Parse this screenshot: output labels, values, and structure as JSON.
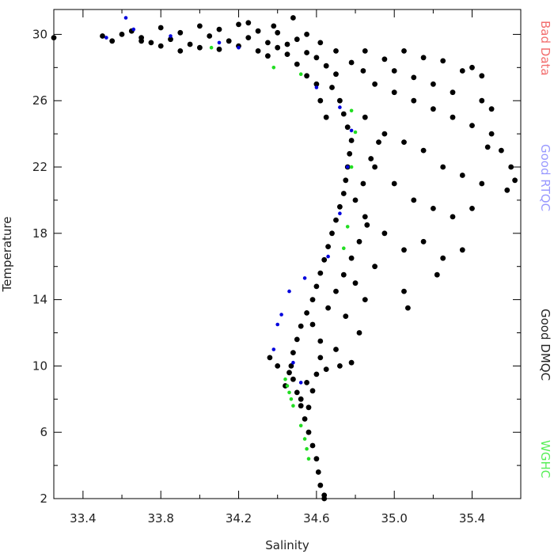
{
  "chart_data": {
    "type": "scatter",
    "xlabel": "Salinity",
    "ylabel": "Temperature",
    "xlim": [
      33.25,
      35.65
    ],
    "ylim": [
      2,
      31.5
    ],
    "x_ticks": [
      33.4,
      33.8,
      34.2,
      34.6,
      35.0,
      35.4
    ],
    "x_tick_labels": [
      "33.4",
      "33.8",
      "34.2",
      "34.6",
      "35.0",
      "35.4"
    ],
    "y_ticks": [
      2,
      6,
      10,
      14,
      18,
      22,
      26,
      30
    ],
    "y_tick_labels": [
      "2",
      "6",
      "10",
      "14",
      "18",
      "22",
      "26",
      "30"
    ],
    "grid": false,
    "legend_position": "right, vertical",
    "legend": [
      {
        "label": "Bad Data",
        "color": "#f26d6d"
      },
      {
        "label": "Good RTQC",
        "color": "#9999ff"
      },
      {
        "label": "Good DMQC",
        "color": "#222222"
      },
      {
        "label": "WGHC",
        "color": "#55ee55"
      }
    ],
    "series": [
      {
        "name": "Good DMQC",
        "color": "#000000",
        "points": [
          [
            33.25,
            29.8
          ],
          [
            33.5,
            29.9
          ],
          [
            33.55,
            29.6
          ],
          [
            33.6,
            30.0
          ],
          [
            33.65,
            30.2
          ],
          [
            33.7,
            29.8
          ],
          [
            33.75,
            29.5
          ],
          [
            33.8,
            30.4
          ],
          [
            33.85,
            29.7
          ],
          [
            33.9,
            30.1
          ],
          [
            33.95,
            29.4
          ],
          [
            34.0,
            30.5
          ],
          [
            34.05,
            29.9
          ],
          [
            34.1,
            30.3
          ],
          [
            34.15,
            29.6
          ],
          [
            34.2,
            30.6
          ],
          [
            34.25,
            29.8
          ],
          [
            34.3,
            30.2
          ],
          [
            34.35,
            29.5
          ],
          [
            34.4,
            30.1
          ],
          [
            34.45,
            29.4
          ],
          [
            34.5,
            29.7
          ],
          [
            34.55,
            28.9
          ],
          [
            34.6,
            28.6
          ],
          [
            34.65,
            28.1
          ],
          [
            34.7,
            27.6
          ],
          [
            34.68,
            26.8
          ],
          [
            34.72,
            26.0
          ],
          [
            34.74,
            25.2
          ],
          [
            34.76,
            24.4
          ],
          [
            34.78,
            23.6
          ],
          [
            34.77,
            22.8
          ],
          [
            34.76,
            22.0
          ],
          [
            34.75,
            21.2
          ],
          [
            34.74,
            20.4
          ],
          [
            34.72,
            19.6
          ],
          [
            34.7,
            18.8
          ],
          [
            34.68,
            18.0
          ],
          [
            34.66,
            17.2
          ],
          [
            34.64,
            16.4
          ],
          [
            34.62,
            15.6
          ],
          [
            34.6,
            14.8
          ],
          [
            34.58,
            14.0
          ],
          [
            34.55,
            13.2
          ],
          [
            34.52,
            12.4
          ],
          [
            34.5,
            11.6
          ],
          [
            34.48,
            10.8
          ],
          [
            34.47,
            10.0
          ],
          [
            34.48,
            9.2
          ],
          [
            34.5,
            8.4
          ],
          [
            34.52,
            7.6
          ],
          [
            34.54,
            6.8
          ],
          [
            34.56,
            6.0
          ],
          [
            34.58,
            5.2
          ],
          [
            34.6,
            4.4
          ],
          [
            34.61,
            3.6
          ],
          [
            34.62,
            2.8
          ],
          [
            34.64,
            2.2
          ],
          [
            34.64,
            2.0
          ],
          [
            34.85,
            29.0
          ],
          [
            34.95,
            28.5
          ],
          [
            35.05,
            29.0
          ],
          [
            35.15,
            28.6
          ],
          [
            35.25,
            28.4
          ],
          [
            35.35,
            27.8
          ],
          [
            35.4,
            28.0
          ],
          [
            35.45,
            27.5
          ],
          [
            34.9,
            27.0
          ],
          [
            35.0,
            26.5
          ],
          [
            35.1,
            26.0
          ],
          [
            35.2,
            25.5
          ],
          [
            35.3,
            25.0
          ],
          [
            35.4,
            24.5
          ],
          [
            35.5,
            24.0
          ],
          [
            35.55,
            23.0
          ],
          [
            34.85,
            25.0
          ],
          [
            34.95,
            24.0
          ],
          [
            35.05,
            23.5
          ],
          [
            35.15,
            23.0
          ],
          [
            35.25,
            22.0
          ],
          [
            35.35,
            21.5
          ],
          [
            35.45,
            21.0
          ],
          [
            35.6,
            22.0
          ],
          [
            35.62,
            21.2
          ],
          [
            35.58,
            20.6
          ],
          [
            34.9,
            22.0
          ],
          [
            35.0,
            21.0
          ],
          [
            35.1,
            20.0
          ],
          [
            35.2,
            19.5
          ],
          [
            35.3,
            19.0
          ],
          [
            35.4,
            19.5
          ],
          [
            34.85,
            19.0
          ],
          [
            34.95,
            18.0
          ],
          [
            35.05,
            17.0
          ],
          [
            35.15,
            17.5
          ],
          [
            35.25,
            16.5
          ],
          [
            35.35,
            17.0
          ],
          [
            35.22,
            15.5
          ],
          [
            35.05,
            14.5
          ],
          [
            35.07,
            13.5
          ],
          [
            34.9,
            16.0
          ],
          [
            34.8,
            15.0
          ],
          [
            34.85,
            14.0
          ],
          [
            34.75,
            13.0
          ],
          [
            34.82,
            12.0
          ],
          [
            34.7,
            11.0
          ],
          [
            34.78,
            10.2
          ],
          [
            34.65,
            9.8
          ],
          [
            34.72,
            10.0
          ],
          [
            34.6,
            9.5
          ],
          [
            34.62,
            10.5
          ],
          [
            34.55,
            9.0
          ],
          [
            34.58,
            8.5
          ],
          [
            34.52,
            8.0
          ],
          [
            34.56,
            7.5
          ],
          [
            34.46,
            9.6
          ],
          [
            34.4,
            10.0
          ],
          [
            34.36,
            10.5
          ],
          [
            34.44,
            8.8
          ],
          [
            34.62,
            11.5
          ],
          [
            34.58,
            12.5
          ],
          [
            34.66,
            13.5
          ],
          [
            34.7,
            14.5
          ],
          [
            34.74,
            15.5
          ],
          [
            34.78,
            16.5
          ],
          [
            34.82,
            17.5
          ],
          [
            34.86,
            18.5
          ],
          [
            34.8,
            20.0
          ],
          [
            34.84,
            21.0
          ],
          [
            34.88,
            22.5
          ],
          [
            34.92,
            23.5
          ],
          [
            34.6,
            27.0
          ],
          [
            34.62,
            26.0
          ],
          [
            34.65,
            25.0
          ],
          [
            34.55,
            27.5
          ],
          [
            34.5,
            28.2
          ],
          [
            34.45,
            28.8
          ],
          [
            34.4,
            29.2
          ],
          [
            34.35,
            28.7
          ],
          [
            34.3,
            29.0
          ],
          [
            34.2,
            29.3
          ],
          [
            34.1,
            29.1
          ],
          [
            34.0,
            29.2
          ],
          [
            33.9,
            29.0
          ],
          [
            33.8,
            29.3
          ],
          [
            33.7,
            29.6
          ],
          [
            34.48,
            31.0
          ],
          [
            34.25,
            30.7
          ],
          [
            34.38,
            30.5
          ],
          [
            34.55,
            30.0
          ],
          [
            34.62,
            29.5
          ],
          [
            34.7,
            29.0
          ],
          [
            34.78,
            28.3
          ],
          [
            34.84,
            27.8
          ],
          [
            35.0,
            27.8
          ],
          [
            35.1,
            27.4
          ],
          [
            35.2,
            27.0
          ],
          [
            35.3,
            26.5
          ],
          [
            35.45,
            26.0
          ],
          [
            35.5,
            25.5
          ],
          [
            35.48,
            23.2
          ]
        ]
      },
      {
        "name": "Good RTQC",
        "color": "#0000dd",
        "points": [
          [
            33.62,
            31.0
          ],
          [
            33.66,
            30.3
          ],
          [
            33.52,
            29.8
          ],
          [
            33.85,
            29.9
          ],
          [
            34.1,
            29.5
          ],
          [
            34.2,
            29.2
          ],
          [
            34.6,
            26.8
          ],
          [
            34.72,
            25.6
          ],
          [
            34.78,
            24.2
          ],
          [
            34.76,
            22.0
          ],
          [
            34.72,
            19.2
          ],
          [
            34.66,
            16.6
          ],
          [
            34.54,
            15.3
          ],
          [
            34.46,
            14.5
          ],
          [
            34.42,
            13.1
          ],
          [
            34.4,
            12.5
          ],
          [
            34.38,
            11.0
          ],
          [
            34.48,
            10.2
          ],
          [
            34.52,
            9.0
          ]
        ]
      },
      {
        "name": "WGHC",
        "color": "#22dd22",
        "points": [
          [
            34.06,
            29.2
          ],
          [
            34.38,
            28.0
          ],
          [
            34.52,
            27.6
          ],
          [
            34.78,
            25.4
          ],
          [
            34.8,
            24.1
          ],
          [
            34.78,
            22.0
          ],
          [
            34.76,
            18.4
          ],
          [
            34.74,
            17.1
          ],
          [
            34.44,
            9.2
          ],
          [
            34.45,
            8.8
          ],
          [
            34.46,
            8.4
          ],
          [
            34.47,
            8.0
          ],
          [
            34.48,
            7.6
          ],
          [
            34.52,
            6.4
          ],
          [
            34.54,
            5.6
          ],
          [
            34.55,
            5.0
          ],
          [
            34.56,
            4.4
          ]
        ]
      }
    ]
  }
}
